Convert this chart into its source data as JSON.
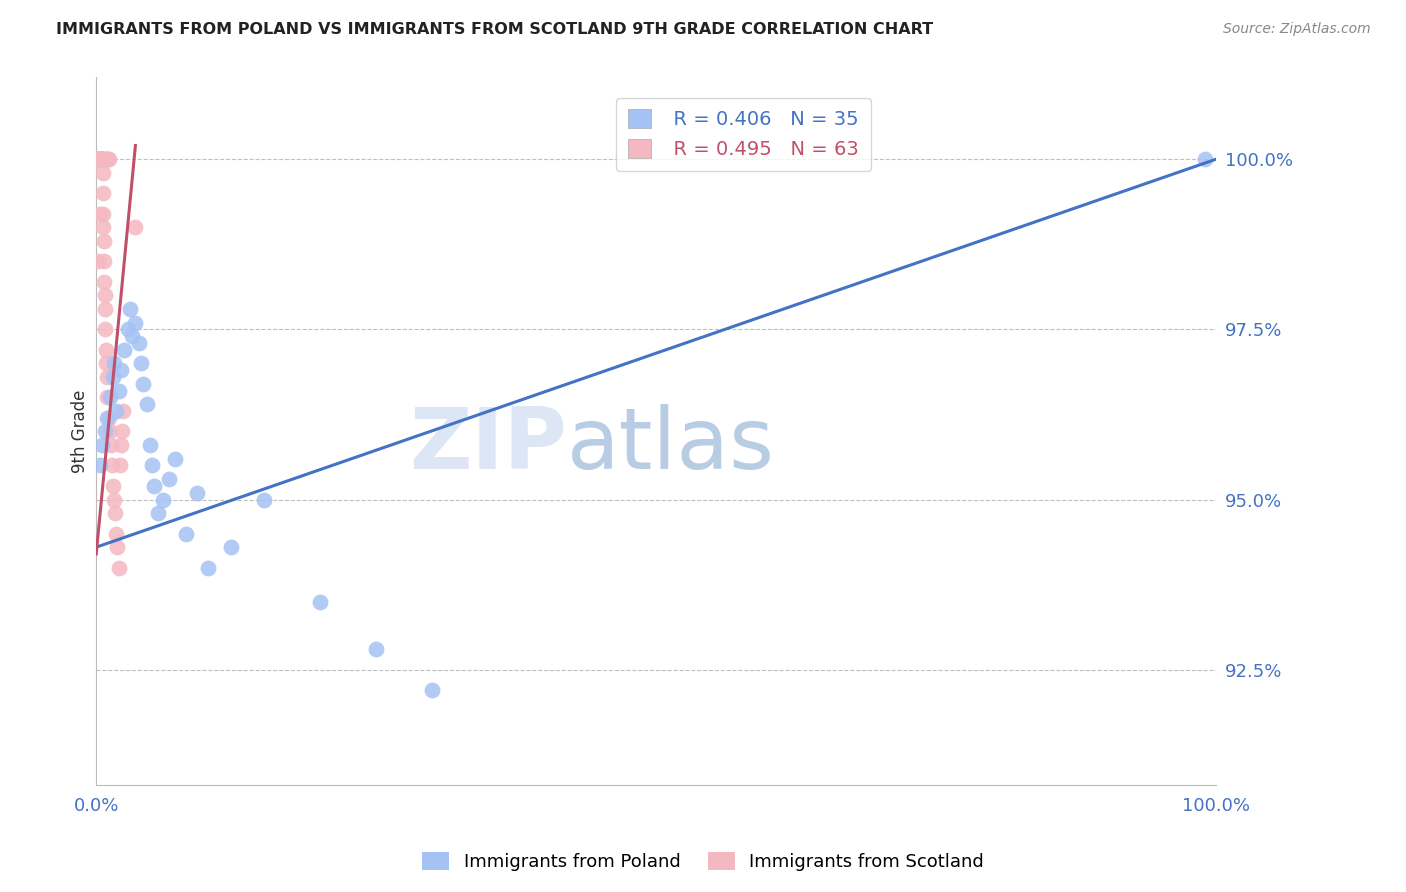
{
  "title": "IMMIGRANTS FROM POLAND VS IMMIGRANTS FROM SCOTLAND 9TH GRADE CORRELATION CHART",
  "source": "Source: ZipAtlas.com",
  "ylabel": "9th Grade",
  "x_tick_labels": [
    "0.0%",
    "100.0%"
  ],
  "y_tick_labels": [
    "92.5%",
    "95.0%",
    "97.5%",
    "100.0%"
  ],
  "y_tick_values": [
    92.5,
    95.0,
    97.5,
    100.0
  ],
  "x_lim": [
    0,
    100
  ],
  "y_lim": [
    90.8,
    101.2
  ],
  "legend1_r": "0.406",
  "legend1_n": "35",
  "legend2_r": "0.495",
  "legend2_n": "63",
  "blue_color": "#a4c2f4",
  "pink_color": "#f4b8c1",
  "blue_line_color": "#4472c4",
  "pink_line_color": "#c0506a",
  "axis_color": "#4472c4",
  "grid_color": "#c0c0c0",
  "watermark_zip_color": "#dce6f4",
  "watermark_atlas_color": "#b8cce4",
  "poland_scatter_x": [
    0.3,
    0.5,
    0.8,
    1.0,
    1.2,
    1.5,
    1.6,
    1.8,
    2.0,
    2.2,
    2.5,
    2.8,
    3.0,
    3.2,
    3.5,
    3.8,
    4.0,
    4.2,
    4.5,
    4.8,
    5.0,
    5.2,
    5.5,
    6.0,
    6.5,
    7.0,
    8.0,
    9.0,
    10.0,
    12.0,
    15.0,
    20.0,
    25.0,
    30.0,
    99.0
  ],
  "poland_scatter_y": [
    95.5,
    95.8,
    96.0,
    96.2,
    96.5,
    96.8,
    97.0,
    96.3,
    96.6,
    96.9,
    97.2,
    97.5,
    97.8,
    97.4,
    97.6,
    97.3,
    97.0,
    96.7,
    96.4,
    95.8,
    95.5,
    95.2,
    94.8,
    95.0,
    95.3,
    95.6,
    94.5,
    95.1,
    94.0,
    94.3,
    95.0,
    93.5,
    92.8,
    92.2,
    100.0
  ],
  "scotland_scatter_x": [
    0.05,
    0.08,
    0.1,
    0.12,
    0.15,
    0.18,
    0.2,
    0.22,
    0.25,
    0.28,
    0.3,
    0.32,
    0.35,
    0.38,
    0.4,
    0.42,
    0.45,
    0.48,
    0.5,
    0.52,
    0.55,
    0.58,
    0.6,
    0.62,
    0.65,
    0.68,
    0.7,
    0.72,
    0.75,
    0.78,
    0.8,
    0.85,
    0.9,
    0.95,
    1.0,
    1.1,
    1.2,
    1.3,
    1.4,
    1.5,
    1.6,
    1.7,
    1.8,
    1.9,
    2.0,
    2.1,
    2.2,
    2.3,
    2.4,
    3.5,
    0.15,
    0.25,
    0.35,
    0.45,
    0.55,
    0.65,
    0.75,
    0.85,
    0.95,
    1.05,
    1.15,
    0.2,
    0.3
  ],
  "scotland_scatter_y": [
    100.0,
    100.0,
    100.0,
    100.0,
    100.0,
    100.0,
    100.0,
    100.0,
    100.0,
    100.0,
    100.0,
    100.0,
    100.0,
    100.0,
    100.0,
    100.0,
    100.0,
    100.0,
    100.0,
    100.0,
    100.0,
    99.8,
    99.5,
    99.2,
    99.0,
    98.8,
    98.5,
    98.2,
    98.0,
    97.8,
    97.5,
    97.2,
    97.0,
    96.8,
    96.5,
    96.2,
    96.0,
    95.8,
    95.5,
    95.2,
    95.0,
    94.8,
    94.5,
    94.3,
    94.0,
    95.5,
    95.8,
    96.0,
    96.3,
    99.0,
    100.0,
    100.0,
    100.0,
    100.0,
    100.0,
    100.0,
    100.0,
    100.0,
    100.0,
    100.0,
    100.0,
    98.5,
    99.2
  ],
  "blue_trendline_x": [
    0,
    100
  ],
  "blue_trendline_y": [
    94.3,
    100.0
  ],
  "pink_trendline_x": [
    0.0,
    3.5
  ],
  "pink_trendline_y": [
    94.2,
    100.2
  ],
  "figsize": [
    14.06,
    8.92
  ],
  "dpi": 100
}
